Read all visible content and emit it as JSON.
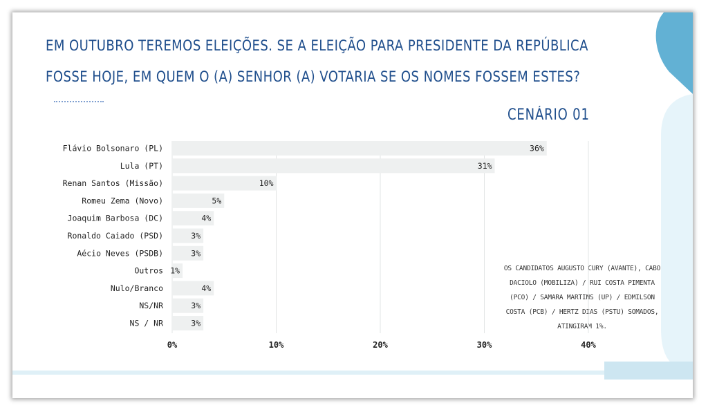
{
  "header": {
    "title_line1": "EM OUTUBRO TEREMOS ELEIÇÕES. SE A ELEIÇÃO PARA PRESIDENTE DA REPÚBLICA",
    "title_line2": "FOSSE HOJE, EM QUEM O (A) SENHOR (A) VOTARIA SE OS NOMES FOSSEM ESTES?",
    "scenario": "CENÁRIO 01"
  },
  "note": "OS CANDIDATOS AUGUSTO CURY (AVANTE), CABO DACIOLO (MOBILIZA) / RUI COSTA PIMENTA (PCO) / SAMARA MARTINS (UP) / EDMILSON COSTA (PCB) / HERTZ DIAS (PSTU) SOMADOS, ATINGIRAM 1%.",
  "colors": {
    "title": "#1f4e8c",
    "bar": "#eef0f0",
    "deco_blue": "#62b1d4",
    "deco_light": "#e6f4fa"
  },
  "chart_data": {
    "type": "bar",
    "orientation": "horizontal",
    "categories": [
      "Flávio Bolsonaro (PL)",
      "Lula (PT)",
      "Renan Santos (Missão)",
      "Romeu Zema (Novo)",
      "Joaquim Barbosa (DC)",
      "Ronaldo Caiado (PSD)",
      "Aécio Neves (PSDB)",
      "Outros",
      "Nulo/Branco",
      "NS/NR",
      "NS / NR"
    ],
    "values": [
      36,
      31,
      10,
      5,
      4,
      3,
      3,
      1,
      4,
      3,
      3
    ],
    "value_labels": [
      "36%",
      "31%",
      "10%",
      "5%",
      "4%",
      "3%",
      "3%",
      "1%",
      "4%",
      "3%",
      "3%"
    ],
    "xlim": [
      0,
      40
    ],
    "xticks": [
      0,
      10,
      20,
      30,
      40
    ],
    "xtick_labels": [
      "0%",
      "10%",
      "20%",
      "30%",
      "40%"
    ],
    "grid": true
  }
}
